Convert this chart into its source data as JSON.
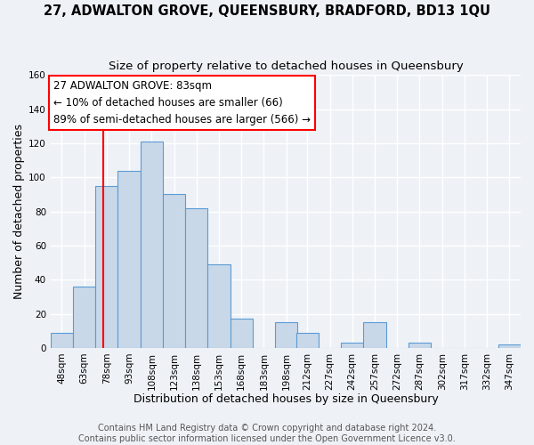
{
  "title": "27, ADWALTON GROVE, QUEENSBURY, BRADFORD, BD13 1QU",
  "subtitle": "Size of property relative to detached houses in Queensbury",
  "xlabel": "Distribution of detached houses by size in Queensbury",
  "ylabel": "Number of detached properties",
  "bin_labels": [
    "48sqm",
    "63sqm",
    "78sqm",
    "93sqm",
    "108sqm",
    "123sqm",
    "138sqm",
    "153sqm",
    "168sqm",
    "183sqm",
    "198sqm",
    "212sqm",
    "227sqm",
    "242sqm",
    "257sqm",
    "272sqm",
    "287sqm",
    "302sqm",
    "317sqm",
    "332sqm",
    "347sqm"
  ],
  "bin_edges": [
    48,
    63,
    78,
    93,
    108,
    123,
    138,
    153,
    168,
    183,
    198,
    212,
    227,
    242,
    257,
    272,
    287,
    302,
    317,
    332,
    347
  ],
  "bar_heights": [
    9,
    36,
    95,
    104,
    121,
    90,
    82,
    49,
    17,
    0,
    15,
    9,
    0,
    3,
    15,
    0,
    3,
    0,
    0,
    0,
    2
  ],
  "bar_color": "#c8d8e8",
  "bar_edge_color": "#5b9bd5",
  "property_line_x": 83,
  "property_line_color": "red",
  "annotation_line1": "27 ADWALTON GROVE: 83sqm",
  "annotation_line2": "← 10% of detached houses are smaller (66)",
  "annotation_line3": "89% of semi-detached houses are larger (566) →",
  "annotation_box_color": "white",
  "annotation_box_edge_color": "red",
  "ylim": [
    0,
    160
  ],
  "yticks": [
    0,
    20,
    40,
    60,
    80,
    100,
    120,
    140,
    160
  ],
  "footer_line1": "Contains HM Land Registry data © Crown copyright and database right 2024.",
  "footer_line2": "Contains public sector information licensed under the Open Government Licence v3.0.",
  "background_color": "#eef2f7",
  "grid_color": "#ffffff",
  "title_fontsize": 10.5,
  "subtitle_fontsize": 9.5,
  "axis_label_fontsize": 9,
  "tick_fontsize": 7.5,
  "annotation_fontsize": 8.5,
  "footer_fontsize": 7
}
